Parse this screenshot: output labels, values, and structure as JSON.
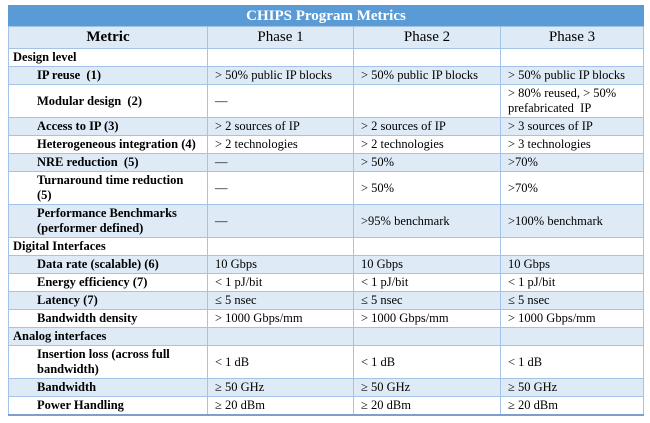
{
  "title": "CHIPS Program Metrics",
  "columns": [
    "Metric",
    "Phase 1",
    "Phase 2",
    "Phase 3"
  ],
  "colors": {
    "title_bar": "#5b9bd5",
    "title_text": "#ffffff",
    "band_row": "#deeaf6",
    "grid_border": "#a3c4e8",
    "outer_border": "#7ba0cd",
    "body_text": "#000000"
  },
  "rows": [
    {
      "type": "section",
      "label": "Design level",
      "values": [
        "",
        "",
        ""
      ]
    },
    {
      "type": "metric",
      "label": "IP reuse  (1)",
      "values": [
        "> 50% public IP blocks",
        "> 50% public IP blocks",
        "> 50% public IP blocks"
      ]
    },
    {
      "type": "metric",
      "label": "Modular design  (2)",
      "values": [
        "—",
        "",
        "> 80% reused, > 50% prefabricated  IP"
      ]
    },
    {
      "type": "metric",
      "label": "Access to IP (3)",
      "values": [
        "> 2 sources of IP",
        "> 2 sources of IP",
        "> 3 sources of IP"
      ]
    },
    {
      "type": "metric",
      "label": "Heterogeneous integration (4)",
      "values": [
        "> 2 technologies",
        "> 2 technologies",
        "> 3 technologies"
      ]
    },
    {
      "type": "metric",
      "label": "NRE reduction  (5)",
      "values": [
        "—",
        "> 50%",
        ">70%"
      ]
    },
    {
      "type": "metric",
      "label": "Turnaround time reduction  (5)",
      "values": [
        "—",
        "> 50%",
        ">70%"
      ]
    },
    {
      "type": "metric",
      "label": "Performance Benchmarks (performer defined)",
      "values": [
        "—",
        ">95% benchmark",
        ">100% benchmark"
      ]
    },
    {
      "type": "section",
      "label": "Digital Interfaces",
      "values": [
        "",
        "",
        ""
      ]
    },
    {
      "type": "metric",
      "label": "Data rate (scalable) (6)",
      "values": [
        "10 Gbps",
        "10 Gbps",
        "10 Gbps"
      ]
    },
    {
      "type": "metric",
      "label": "Energy efficiency (7)",
      "values": [
        "< 1 pJ/bit",
        "< 1 pJ/bit",
        "< 1 pJ/bit"
      ]
    },
    {
      "type": "metric",
      "label": "Latency (7)",
      "values": [
        "≤ 5 nsec",
        "≤ 5 nsec",
        "≤ 5 nsec"
      ]
    },
    {
      "type": "metric",
      "label": "Bandwidth density",
      "values": [
        "> 1000 Gbps/mm",
        "> 1000 Gbps/mm",
        "> 1000 Gbps/mm"
      ]
    },
    {
      "type": "section",
      "label": "Analog interfaces",
      "values": [
        "",
        "",
        ""
      ]
    },
    {
      "type": "metric",
      "label": "Insertion loss (across full bandwidth)",
      "values": [
        "< 1 dB",
        "< 1 dB",
        "< 1 dB"
      ]
    },
    {
      "type": "metric",
      "label": "Bandwidth",
      "values": [
        "≥ 50 GHz",
        "≥ 50 GHz",
        "≥ 50 GHz"
      ]
    },
    {
      "type": "metric",
      "label": "Power Handling",
      "values": [
        "≥ 20 dBm",
        "≥ 20 dBm",
        "≥ 20 dBm"
      ]
    }
  ]
}
